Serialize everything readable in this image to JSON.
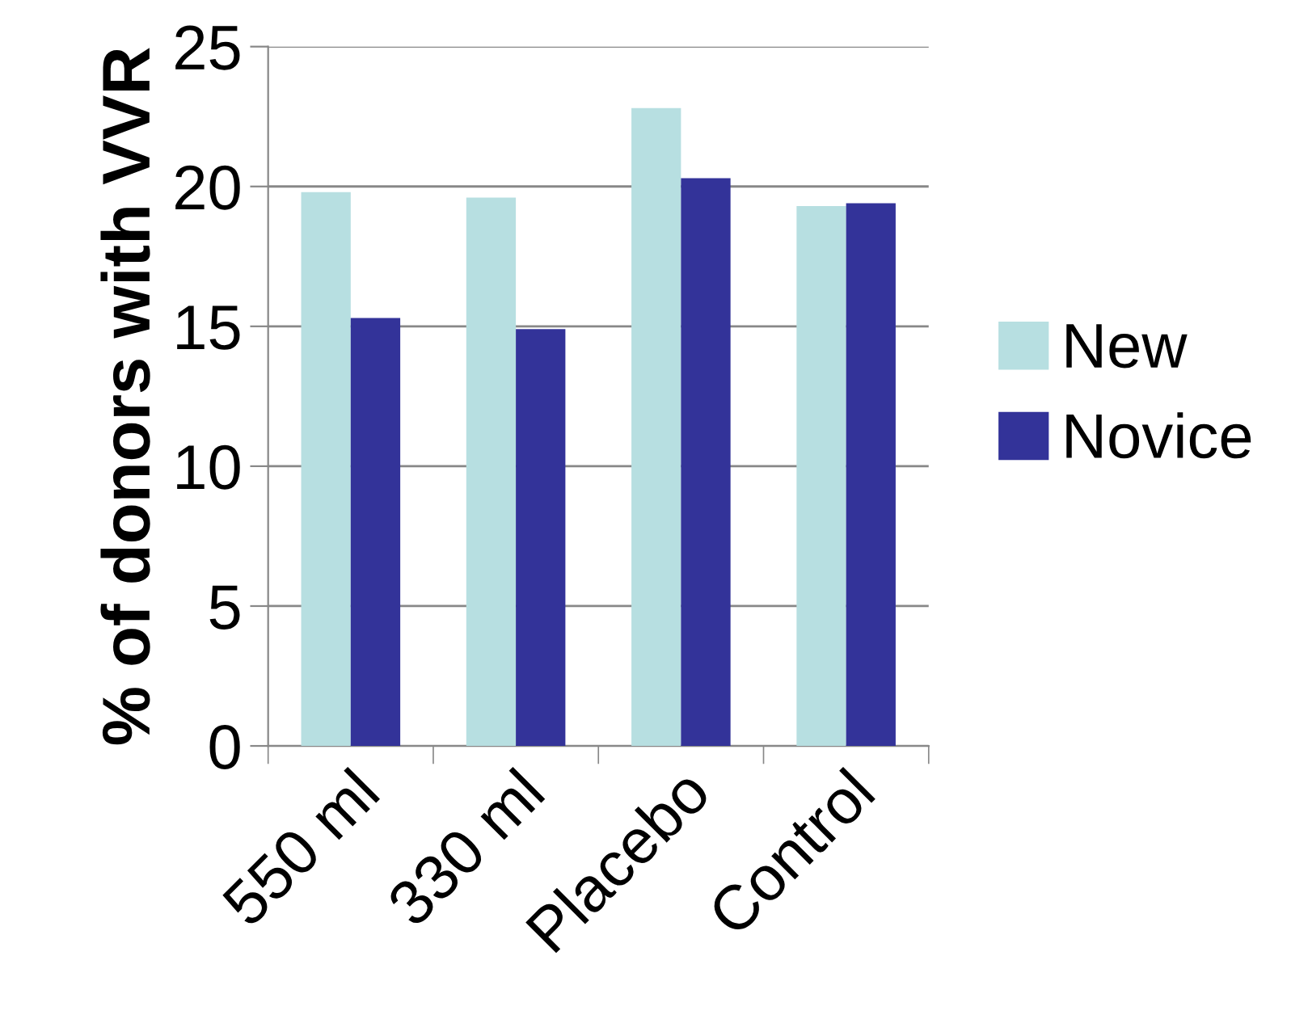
{
  "chart_data": {
    "type": "bar",
    "ylabel": "% of donors with VVR",
    "categories": [
      "550 ml",
      "330 ml",
      "Placebo",
      "Control"
    ],
    "series": [
      {
        "name": "New",
        "color": "#b7dfe1",
        "values": [
          19.8,
          19.6,
          22.8,
          19.3
        ]
      },
      {
        "name": "Novice",
        "color": "#333399",
        "values": [
          15.3,
          14.9,
          20.3,
          19.4
        ]
      }
    ],
    "ylim": [
      0,
      25
    ],
    "yticks": [
      0,
      5,
      10,
      15,
      20,
      25
    ],
    "grid": "y",
    "legend": "right"
  }
}
